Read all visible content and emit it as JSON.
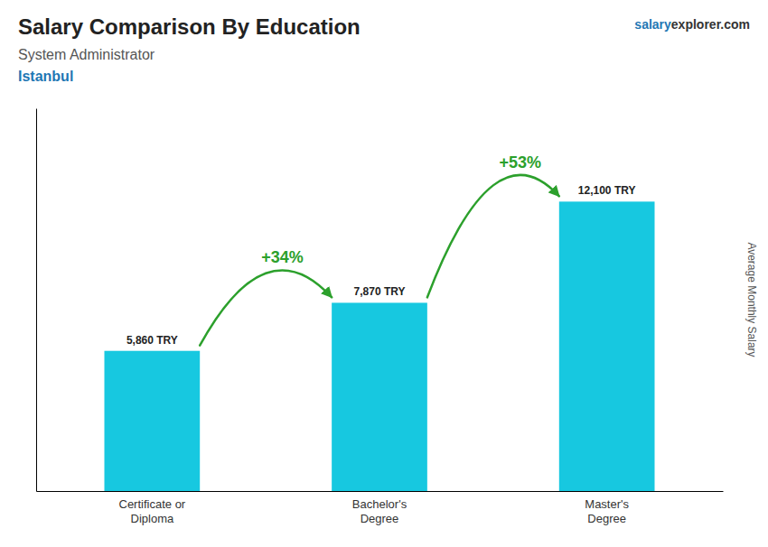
{
  "chart_data": {
    "type": "bar",
    "title": "Salary Comparison By Education",
    "subtitle": "System Administrator",
    "location": "Istanbul",
    "ylabel": "Average Monthly Salary",
    "categories": [
      "Certificate or\nDiploma",
      "Bachelor's\nDegree",
      "Master's\nDegree"
    ],
    "values": [
      5860,
      7870,
      12100
    ],
    "value_labels": [
      "5,860 TRY",
      "7,870 TRY",
      "12,100 TRY"
    ],
    "data_labels": true,
    "annotations": [
      "+34%",
      "+53%"
    ],
    "watermark": [
      "salary",
      "explorer",
      ".com"
    ],
    "color": "#17c8e0",
    "ylim": [
      0,
      16000
    ],
    "yticks": [],
    "grid": false,
    "tick_labels": "x"
  }
}
